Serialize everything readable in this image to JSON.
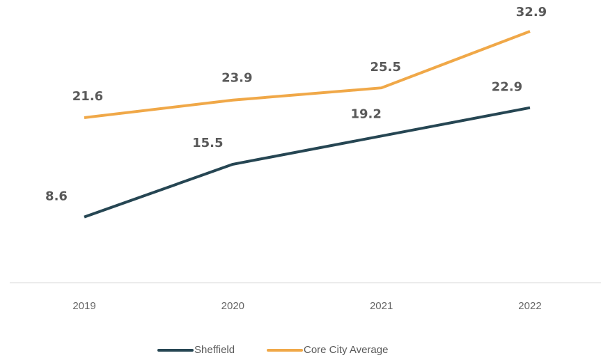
{
  "chart_data": {
    "type": "line",
    "categories": [
      "2019",
      "2020",
      "2021",
      "2022"
    ],
    "series": [
      {
        "name": "Sheffield",
        "color": "#264653",
        "values": [
          8.6,
          15.5,
          19.2,
          22.9
        ]
      },
      {
        "name": "Core City Average",
        "color": "#f0a848",
        "values": [
          21.6,
          23.9,
          25.5,
          32.9
        ]
      }
    ],
    "ylim": [
      0,
      37
    ]
  }
}
